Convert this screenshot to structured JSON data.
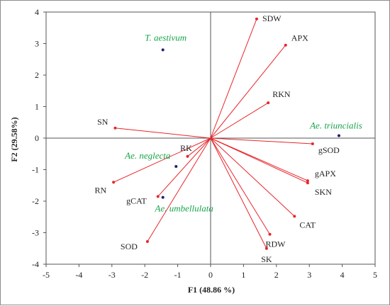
{
  "chart_data": {
    "type": "scatter",
    "subtype": "pca-biplot",
    "title": "",
    "xlabel": "F1 (48.86 %)",
    "ylabel": "F2 (29.58%)",
    "xlim": [
      -5,
      5
    ],
    "ylim": [
      -4,
      4
    ],
    "xticks": [
      "-5",
      "-4",
      "-3",
      "-2",
      "-1",
      "0",
      "1",
      "2",
      "3",
      "4",
      "5"
    ],
    "yticks": [
      "4",
      "3",
      "2",
      "1",
      "0",
      "-1",
      "-2",
      "-3",
      "-4"
    ],
    "grid": false,
    "legend": "none",
    "colors": {
      "vector": "#e8262b",
      "species_point": "#1f1f6e",
      "species_label": "#17a34a",
      "axis": "#555555"
    },
    "variables": [
      {
        "name": "SDW",
        "x": 1.4,
        "y": 3.78
      },
      {
        "name": "APX",
        "x": 2.28,
        "y": 2.95
      },
      {
        "name": "RKN",
        "x": 1.75,
        "y": 1.12
      },
      {
        "name": "SN",
        "x": -2.9,
        "y": 0.32
      },
      {
        "name": "gSOD",
        "x": 3.1,
        "y": -0.18
      },
      {
        "name": "gAPX",
        "x": 2.95,
        "y": -1.35
      },
      {
        "name": "SKN",
        "x": 2.95,
        "y": -1.42
      },
      {
        "name": "CAT",
        "x": 2.55,
        "y": -2.48
      },
      {
        "name": "RDW",
        "x": 1.8,
        "y": -3.05
      },
      {
        "name": "SK",
        "x": 1.7,
        "y": -3.5
      },
      {
        "name": "RK",
        "x": -0.7,
        "y": -0.58
      },
      {
        "name": "RN",
        "x": -2.95,
        "y": -1.4
      },
      {
        "name": "gCAT",
        "x": -1.6,
        "y": -1.85
      },
      {
        "name": "SOD",
        "x": -1.92,
        "y": -3.28
      }
    ],
    "species": [
      {
        "name": "T. aestivum",
        "x": -1.45,
        "y": 2.8
      },
      {
        "name": "Ae. triuncialis",
        "x": 3.9,
        "y": 0.08
      },
      {
        "name": "Ae. neglecta",
        "x": -1.05,
        "y": -0.9
      },
      {
        "name": "Ae. umbellulata",
        "x": -1.45,
        "y": -1.88
      }
    ]
  }
}
